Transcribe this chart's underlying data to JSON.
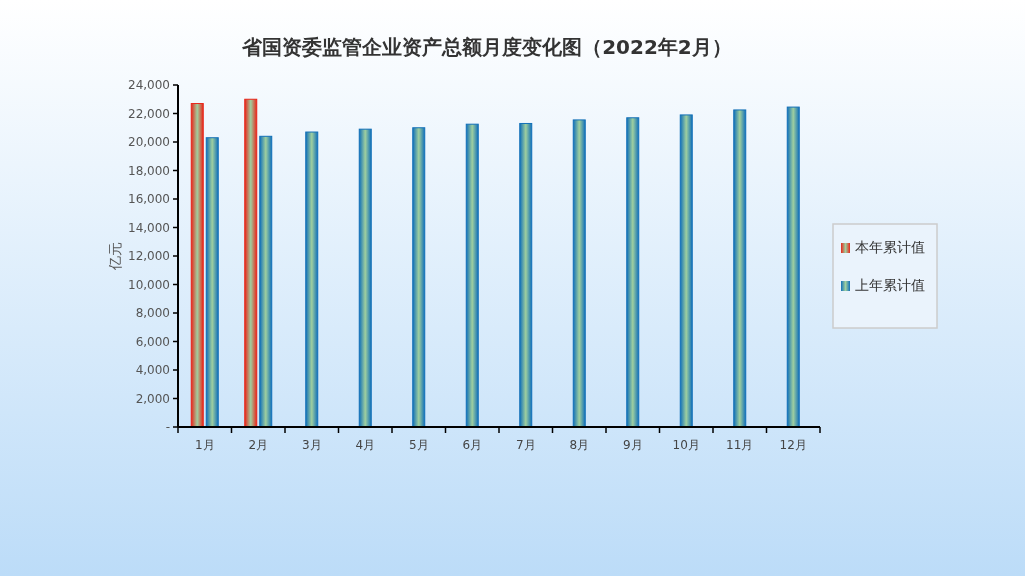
{
  "chart_data": {
    "type": "bar",
    "title": "省国资委监管企业资产总额月度变化图（2022年2月）",
    "ylabel": "亿元",
    "categories": [
      "1月",
      "2月",
      "3月",
      "4月",
      "5月",
      "6月",
      "7月",
      "8月",
      "9月",
      "10月",
      "11月",
      "12月"
    ],
    "series": [
      {
        "name": "本年累计值",
        "color": "#e8261a",
        "values": [
          22700,
          23000,
          null,
          null,
          null,
          null,
          null,
          null,
          null,
          null,
          null,
          null
        ]
      },
      {
        "name": "上年累计值",
        "color": "#1270b8",
        "values": [
          20300,
          20400,
          20700,
          20900,
          21000,
          21250,
          21300,
          21550,
          21700,
          21900,
          22250,
          22450
        ]
      }
    ],
    "ylim": [
      0,
      24000
    ],
    "yticks": [
      {
        "value": 0,
        "label": "-"
      },
      {
        "value": 2000,
        "label": "2,000"
      },
      {
        "value": 4000,
        "label": "4,000"
      },
      {
        "value": 6000,
        "label": "6,000"
      },
      {
        "value": 8000,
        "label": "8,000"
      },
      {
        "value": 10000,
        "label": "10,000"
      },
      {
        "value": 12000,
        "label": "12,000"
      },
      {
        "value": 14000,
        "label": "14,000"
      },
      {
        "value": 16000,
        "label": "16,000"
      },
      {
        "value": 18000,
        "label": "18,000"
      },
      {
        "value": 20000,
        "label": "20,000"
      },
      {
        "value": 22000,
        "label": "22,000"
      },
      {
        "value": 24000,
        "label": "24,000"
      }
    ],
    "grid": false,
    "legend": "right"
  }
}
